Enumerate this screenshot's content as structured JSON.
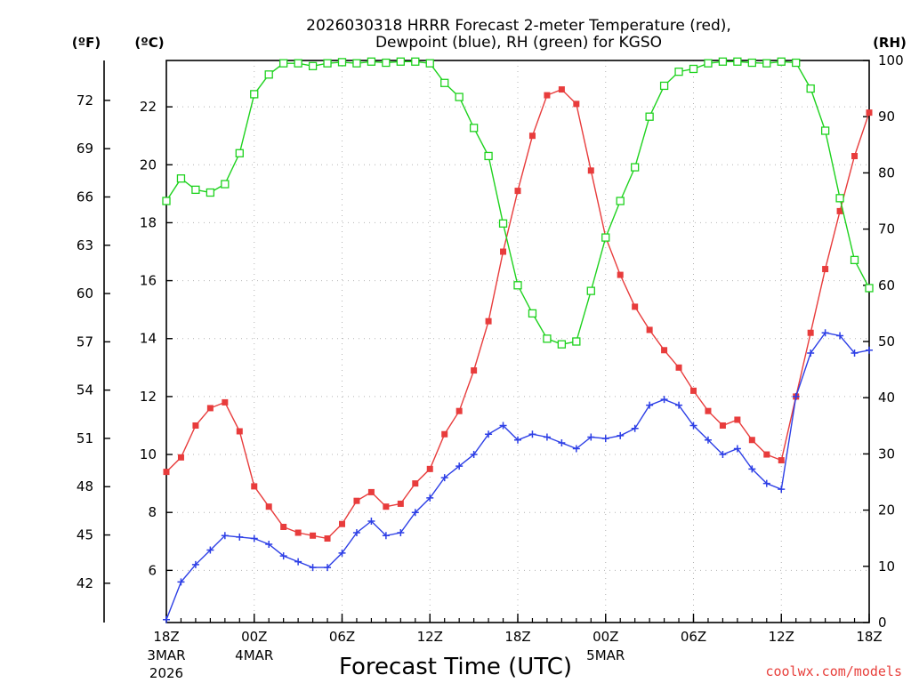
{
  "chart_data": {
    "type": "line",
    "title_line1": "2026030318 HRRR Forecast 2-meter Temperature (red),",
    "title_line2": "Dewpoint (blue), RH (green) for KGSO",
    "xlabel": "Forecast Time (UTC)",
    "credit": "coolwx.com/models",
    "units": {
      "fahrenheit": "(ºF)",
      "celsius": "(ºC)",
      "rh": "(RH)"
    },
    "x_hours": [
      0,
      1,
      2,
      3,
      4,
      5,
      6,
      7,
      8,
      9,
      10,
      11,
      12,
      13,
      14,
      15,
      16,
      17,
      18,
      19,
      20,
      21,
      22,
      23,
      24,
      25,
      26,
      27,
      28,
      29,
      30,
      31,
      32,
      33,
      34,
      35,
      36,
      37,
      38,
      39,
      40,
      41,
      42,
      43,
      44,
      45,
      46,
      47,
      48
    ],
    "x_range": [
      0,
      48
    ],
    "x_ticks": [
      {
        "hour": 0,
        "label": "18Z",
        "label2": "3MAR",
        "label3": "2026"
      },
      {
        "hour": 6,
        "label": "00Z",
        "label2": "4MAR",
        "label3": ""
      },
      {
        "hour": 12,
        "label": "06Z",
        "label2": "",
        "label3": ""
      },
      {
        "hour": 18,
        "label": "12Z",
        "label2": "",
        "label3": ""
      },
      {
        "hour": 24,
        "label": "18Z",
        "label2": "",
        "label3": ""
      },
      {
        "hour": 30,
        "label": "00Z",
        "label2": "5MAR",
        "label3": ""
      },
      {
        "hour": 36,
        "label": "06Z",
        "label2": "",
        "label3": ""
      },
      {
        "hour": 42,
        "label": "12Z",
        "label2": "",
        "label3": ""
      },
      {
        "hour": 48,
        "label": "18Z",
        "label2": "",
        "label3": ""
      }
    ],
    "celsius_range": [
      4.2,
      23.6
    ],
    "celsius_ticks": [
      "6",
      "8",
      "10",
      "12",
      "14",
      "16",
      "18",
      "20",
      "22"
    ],
    "fahrenheit_ticks": [
      "42",
      "45",
      "48",
      "51",
      "54",
      "57",
      "60",
      "63",
      "66",
      "69",
      "72"
    ],
    "rh_range": [
      0,
      100
    ],
    "rh_ticks": [
      "0",
      "10",
      "20",
      "30",
      "40",
      "50",
      "60",
      "70",
      "80",
      "90",
      "100"
    ],
    "series": [
      {
        "name": "Temperature",
        "unit": "C",
        "color": "#e83c3c",
        "marker": "filled-square",
        "values": [
          9.4,
          9.9,
          11.0,
          11.6,
          11.8,
          10.8,
          8.9,
          8.2,
          7.5,
          7.3,
          7.2,
          7.1,
          7.6,
          8.4,
          8.7,
          8.2,
          8.3,
          9.0,
          9.5,
          10.7,
          11.5,
          12.9,
          14.6,
          17.0,
          19.1,
          21.0,
          22.4,
          22.6,
          22.1,
          19.8,
          17.5,
          16.2,
          15.1,
          14.3,
          13.6,
          13.0,
          12.2,
          11.5,
          11.0,
          11.2,
          10.5,
          10.0,
          9.8,
          12.0,
          14.2,
          16.4,
          18.4,
          20.3,
          21.8
        ]
      },
      {
        "name": "Dewpoint",
        "unit": "C",
        "color": "#2d3fe6",
        "marker": "plus",
        "values": [
          4.3,
          5.6,
          6.2,
          6.7,
          7.2,
          7.15,
          7.1,
          6.9,
          6.5,
          6.3,
          6.1,
          6.1,
          6.6,
          7.3,
          7.7,
          7.2,
          7.3,
          8.0,
          8.5,
          9.2,
          9.6,
          10.0,
          10.7,
          11.0,
          10.5,
          10.7,
          10.6,
          10.4,
          10.2,
          10.6,
          10.55,
          10.65,
          10.9,
          11.7,
          11.9,
          11.7,
          11.0,
          10.5,
          10.0,
          10.2,
          9.5,
          9.0,
          8.8,
          12.0,
          13.5,
          14.2,
          14.1,
          13.5,
          13.6
        ]
      },
      {
        "name": "RH",
        "unit": "%",
        "color": "#1ed21e",
        "marker": "open-square",
        "values": [
          75,
          79,
          77,
          76.5,
          78,
          83.5,
          94,
          97.5,
          99.5,
          99.5,
          99,
          99.5,
          99.7,
          99.5,
          99.8,
          99.6,
          99.8,
          99.8,
          99.5,
          96,
          93.5,
          88,
          83,
          71,
          60,
          55,
          50.5,
          49.5,
          50,
          59,
          68.5,
          75,
          81,
          90,
          95.5,
          98,
          98.5,
          99.5,
          99.8,
          99.8,
          99.6,
          99.5,
          99.8,
          99.6,
          95,
          87.5,
          75.5,
          64.5,
          59.5
        ]
      }
    ]
  }
}
